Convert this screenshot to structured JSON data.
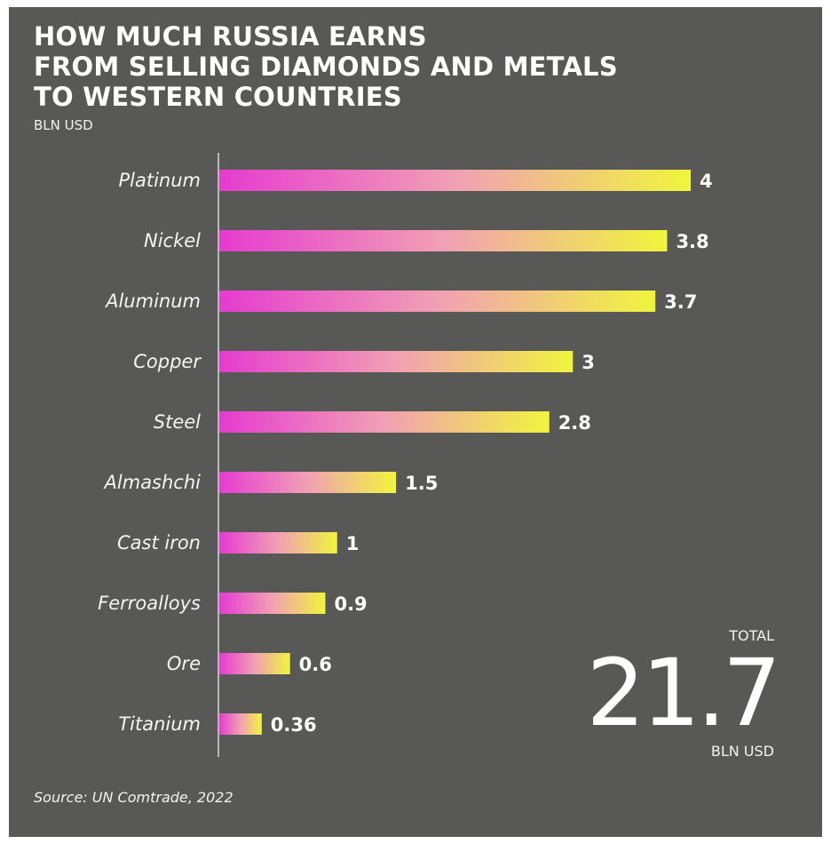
{
  "chart_data": {
    "type": "bar",
    "orientation": "horizontal",
    "title_lines": [
      "HOW MUCH RUSSIA EARNS",
      "FROM SELLING DIAMONDS AND METALS",
      "TO WESTERN COUNTRIES"
    ],
    "unit": "BLN USD",
    "categories": [
      "Platinum",
      "Nickel",
      "Aluminum",
      "Copper",
      "Steel",
      "Almashchi",
      "Cast iron",
      "Ferroalloys",
      "Ore",
      "Titanium"
    ],
    "values": [
      4,
      3.8,
      3.7,
      3,
      2.8,
      1.5,
      1,
      0.9,
      0.6,
      0.36
    ],
    "value_labels": [
      "4",
      "3.8",
      "3.7",
      "3",
      "2.8",
      "1.5",
      "1",
      "0.9",
      "0.6",
      "0.36"
    ],
    "xlim": [
      0,
      4
    ],
    "grid": false,
    "bar_gradient": {
      "start": "#e63bd0",
      "middle": "#f1a0b4",
      "end": "#f0f53c"
    },
    "background": "#585856"
  },
  "total": {
    "label": "TOTAL",
    "value": "21.7",
    "unit": "BLN USD"
  },
  "source": "Source: UN Comtrade, 2022"
}
